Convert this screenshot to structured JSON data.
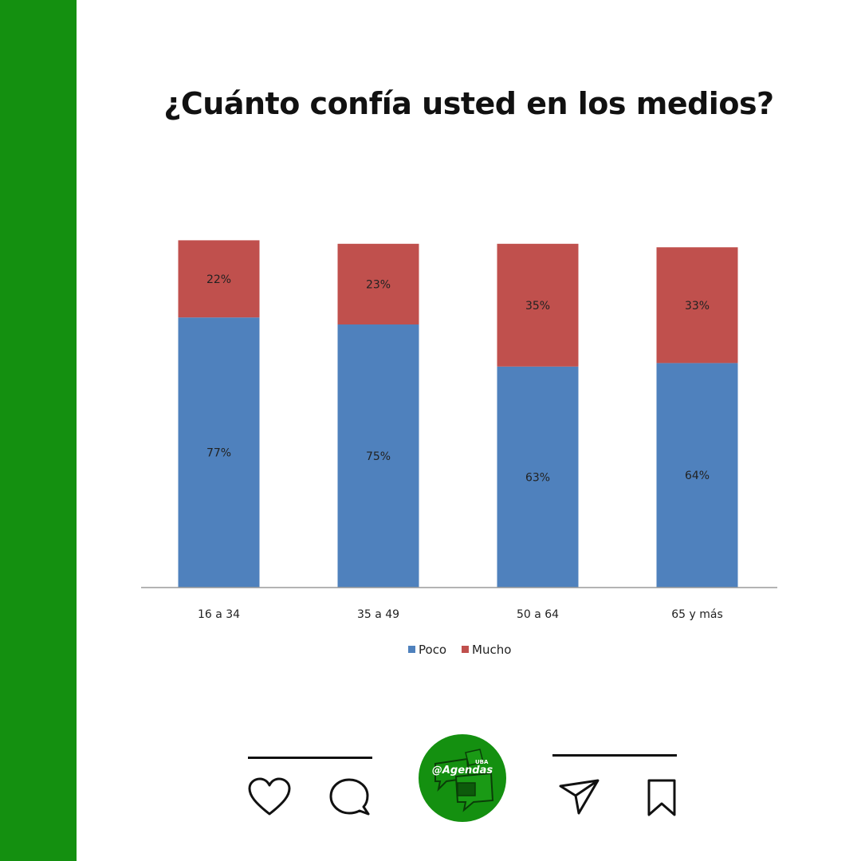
{
  "colors": {
    "accent_green": "#149010",
    "poco": "#4f81bd",
    "mucho": "#c0504d",
    "axis": "#9a9a9a"
  },
  "header": {
    "title": "¿Cuánto confía usted en los medios?"
  },
  "chart_data": {
    "type": "bar",
    "stacked": true,
    "title": "¿Cuánto confía usted en los medios?",
    "xlabel": "",
    "ylabel": "",
    "categories": [
      "16 a 34",
      "35 a 49",
      "50 a 64",
      "65 y más"
    ],
    "series": [
      {
        "name": "Poco",
        "values": [
          77,
          75,
          63,
          64
        ],
        "labels": [
          "77%",
          "75%",
          "63%",
          "64%"
        ],
        "color": "#4f81bd"
      },
      {
        "name": "Mucho",
        "values": [
          22,
          23,
          35,
          33
        ],
        "labels": [
          "22%",
          "23%",
          "35%",
          "33%"
        ],
        "color": "#c0504d"
      }
    ],
    "ylim": [
      0,
      100
    ],
    "grid": false,
    "legend": "bottom"
  },
  "footer": {
    "icons": [
      "heart-icon",
      "comment-icon",
      "send-icon",
      "bookmark-icon"
    ],
    "logo": {
      "small_text": "UBA",
      "handle": "@Agendas"
    }
  }
}
